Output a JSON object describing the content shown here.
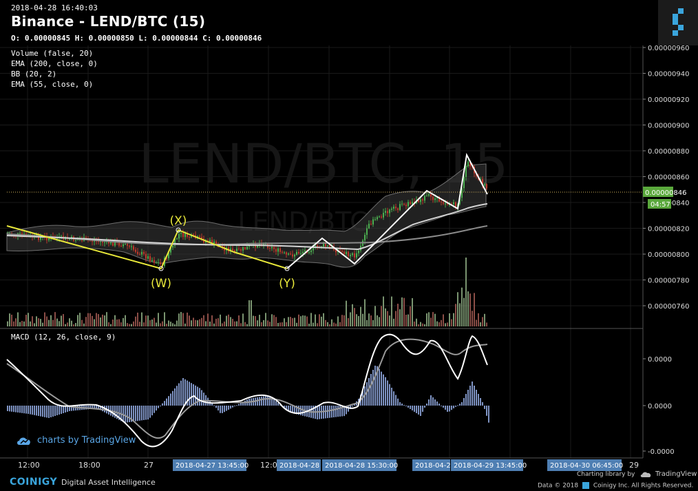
{
  "header": {
    "timestamp": "2018-04-28 16:40:03",
    "title": "Binance - LEND/BTC (15)",
    "ohlc": "O: 0.00000845 H: 0.00000850 L: 0.00000844 C: 0.00000846"
  },
  "watermark": {
    "main": "LEND/BTC, 15",
    "sub": "LEND/BTC"
  },
  "indicators": [
    "Volume (false, 20)",
    "EMA (200, close, 0)",
    "BB (20, 2)",
    "EMA (55, close, 0)"
  ],
  "macd": {
    "label": "MACD (12, 26, close, 9)"
  },
  "price_axis": {
    "labels": [
      "0.00000960",
      "0.00000940",
      "0.00000920",
      "0.00000900",
      "0.00000880",
      "0.00000860",
      "0.00000840",
      "0.00000820",
      "0.00000800",
      "0.00000780",
      "0.00000760"
    ],
    "current_price": "0.00000846",
    "countdown": "04:57"
  },
  "macd_axis": {
    "labels": [
      "0.0000",
      "0.0000",
      "-0.0000"
    ]
  },
  "time_axis": {
    "labels": [
      "12:00",
      "18:00",
      "27",
      "12:00"
    ],
    "markers": [
      "2018-04-27 13:45:00",
      "2018-04-28 ",
      "2018-04-28 15:30:00",
      "2018-04-2",
      "2018-04-29 13:45:00",
      "2018-04-30 06:45:00"
    ],
    "end_label": "29"
  },
  "wave_labels": [
    "(X)",
    "(W)",
    "(Y)"
  ],
  "branding": {
    "tradingview": "charts by TradingView",
    "coinigy": "COINIGY",
    "tagline": "Digital Asset Intelligence",
    "charting_lib": "Charting library by",
    "tv_name": "TradingView",
    "data_credit": "Data © 2018",
    "data_credit2": "Coinigy Inc. All Rights Reserved."
  },
  "colors": {
    "up": "#4caf50",
    "down": "#c0392b",
    "yellow": "#e8e83a",
    "price_tag": "#5aa83c",
    "marker_bg": "#4f7fb3",
    "macd_hist": "#7f94c4"
  }
}
